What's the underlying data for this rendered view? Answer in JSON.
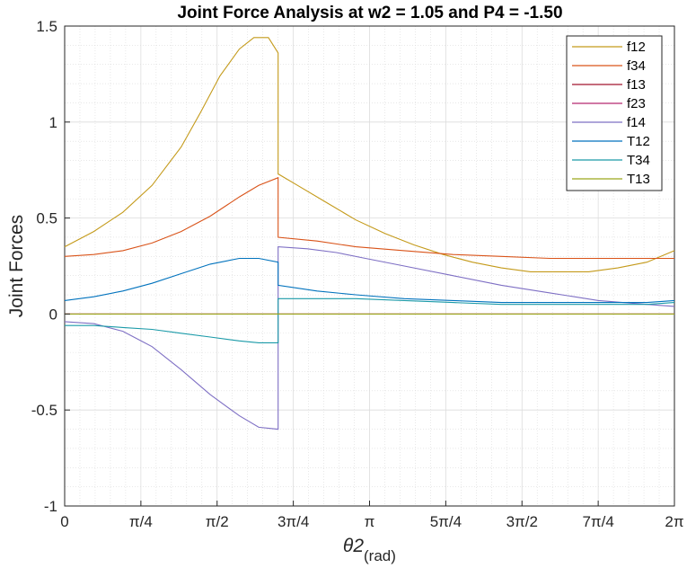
{
  "chart_data": {
    "type": "line",
    "title": "Joint Force Analysis at w2 = 1.05 and P4 = -1.50",
    "xlabel": "θ2",
    "xlabel_sub": "(rad)",
    "ylabel": "Joint Forces",
    "xlim": [
      0,
      6.2832
    ],
    "ylim": [
      -1,
      1.5
    ],
    "x_ticks": [
      0,
      0.7854,
      1.5708,
      2.3562,
      3.1416,
      3.927,
      4.7124,
      5.4978,
      6.2832
    ],
    "x_tick_labels": [
      "0",
      "π/4",
      "π/2",
      "3π/4",
      "π",
      "5π/4",
      "3π/2",
      "7π/4",
      "2π"
    ],
    "y_ticks": [
      -1,
      -0.5,
      0,
      0.5,
      1,
      1.5
    ],
    "y_tick_labels": [
      "-1",
      "-0.5",
      "0",
      "0.5",
      "1",
      "1.5"
    ],
    "grid": true,
    "minor_grid": true,
    "legend_position": "top-right",
    "series": [
      {
        "name": "f12",
        "color": "#c49a1a",
        "x": [
          0,
          0.3,
          0.6,
          0.9,
          1.2,
          1.4,
          1.6,
          1.8,
          1.95,
          2.1,
          2.2,
          2.2,
          2.4,
          2.7,
          3.0,
          3.3,
          3.6,
          3.9,
          4.2,
          4.5,
          4.8,
          5.1,
          5.4,
          5.7,
          6.0,
          6.2832
        ],
        "y": [
          0.35,
          0.43,
          0.53,
          0.67,
          0.87,
          1.05,
          1.24,
          1.38,
          1.44,
          1.44,
          1.36,
          0.73,
          0.67,
          0.58,
          0.49,
          0.42,
          0.36,
          0.31,
          0.27,
          0.24,
          0.22,
          0.22,
          0.22,
          0.24,
          0.27,
          0.33
        ]
      },
      {
        "name": "f34",
        "color": "#d95319",
        "x": [
          0,
          0.3,
          0.6,
          0.9,
          1.2,
          1.5,
          1.8,
          2.0,
          2.2,
          2.2,
          2.6,
          3.0,
          3.5,
          4.0,
          4.5,
          5.0,
          5.5,
          6.0,
          6.2832
        ],
        "y": [
          0.3,
          0.31,
          0.33,
          0.37,
          0.43,
          0.51,
          0.61,
          0.67,
          0.71,
          0.4,
          0.38,
          0.35,
          0.33,
          0.31,
          0.3,
          0.29,
          0.29,
          0.29,
          0.29
        ]
      },
      {
        "name": "f13",
        "color": "#a2142f",
        "x": [
          0,
          6.2832
        ],
        "y": [
          0.0,
          0.0
        ]
      },
      {
        "name": "f23",
        "color": "#b5276f",
        "x": [
          0,
          6.2832
        ],
        "y": [
          0.0,
          0.0
        ]
      },
      {
        "name": "f14",
        "color": "#7e6fc4",
        "x": [
          0,
          0.3,
          0.6,
          0.9,
          1.2,
          1.5,
          1.8,
          2.0,
          2.2,
          2.2,
          2.5,
          2.8,
          3.1,
          3.5,
          4.0,
          4.5,
          5.0,
          5.5,
          6.0,
          6.2832
        ],
        "y": [
          -0.04,
          -0.05,
          -0.09,
          -0.17,
          -0.29,
          -0.42,
          -0.53,
          -0.59,
          -0.6,
          0.35,
          0.34,
          0.32,
          0.29,
          0.25,
          0.2,
          0.15,
          0.11,
          0.07,
          0.05,
          0.04
        ]
      },
      {
        "name": "T12",
        "color": "#0072bd",
        "x": [
          0,
          0.3,
          0.6,
          0.9,
          1.2,
          1.5,
          1.8,
          2.0,
          2.2,
          2.2,
          2.6,
          3.0,
          3.5,
          4.0,
          4.5,
          5.0,
          5.5,
          6.0,
          6.2832
        ],
        "y": [
          0.07,
          0.09,
          0.12,
          0.16,
          0.21,
          0.26,
          0.29,
          0.29,
          0.27,
          0.15,
          0.12,
          0.1,
          0.08,
          0.07,
          0.06,
          0.06,
          0.06,
          0.06,
          0.07
        ]
      },
      {
        "name": "T34",
        "color": "#1a9aa8",
        "x": [
          0,
          0.3,
          0.6,
          0.9,
          1.2,
          1.5,
          1.8,
          2.0,
          2.2,
          2.2,
          2.6,
          3.0,
          3.5,
          4.0,
          4.5,
          5.0,
          5.5,
          6.0,
          6.2832
        ],
        "y": [
          -0.06,
          -0.06,
          -0.07,
          -0.08,
          -0.1,
          -0.12,
          -0.14,
          -0.15,
          -0.15,
          0.08,
          0.08,
          0.08,
          0.07,
          0.06,
          0.05,
          0.05,
          0.05,
          0.05,
          0.06
        ]
      },
      {
        "name": "T13",
        "color": "#9aa61a",
        "x": [
          0,
          6.2832
        ],
        "y": [
          0.0,
          0.0
        ]
      }
    ]
  }
}
